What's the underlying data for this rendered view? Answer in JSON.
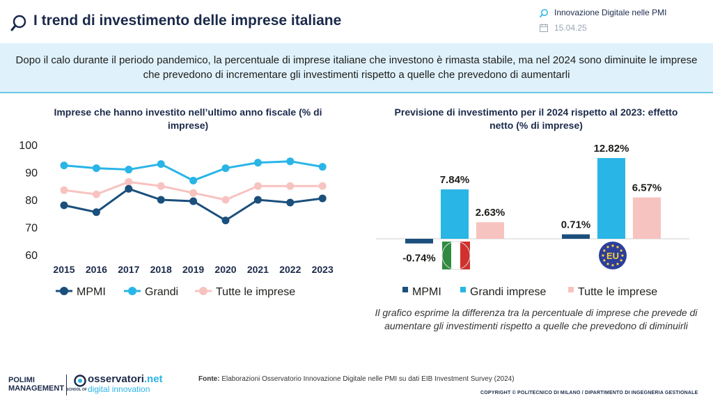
{
  "header": {
    "title": "I trend di investimento delle imprese italiane",
    "right_topic": "Innovazione Digitale nelle PMI",
    "right_date": "15.04.25"
  },
  "banner": {
    "text": "Dopo il calo durante il periodo pandemico, la percentuale di imprese italiane che investono è rimasta stabile, ma nel 2024 sono diminuite le imprese che prevedono di incrementare gli investimenti rispetto a quelle che prevedono di aumentarli"
  },
  "note": "Il grafico esprime la differenza tra la percentuale di imprese che prevede di aumentare gli investimenti rispetto a quelle che prevedono di diminuirli",
  "footer": {
    "source_label": "Fonte:",
    "source_text": "Elaborazioni Osservatorio Innovazione Digitale nelle PMI su dati EIB Investment Survey (2024)",
    "copyright": "COPYRIGHT © POLITECNICO DI MILANO / DIPARTIMENTO DI INGEGNERIA GESTIONALE"
  },
  "logos": {
    "polimi_line1": "POLIMI",
    "polimi_line2": "MANAGEMENT",
    "polimi_school": "SCHOOL OF",
    "oss_name_a": "osservatori",
    "oss_name_b": ".net",
    "oss_sub": "digital innovation"
  },
  "colors": {
    "mpmi": "#1b4f7c",
    "grandi": "#29b5e6",
    "tutte": "#f7c3c0"
  },
  "chart_data": [
    {
      "type": "line",
      "title": "Imprese che hanno investito nell’ultimo anno fiscale (% di imprese)",
      "x": [
        "2015",
        "2016",
        "2017",
        "2018",
        "2019",
        "2020",
        "2021",
        "2022",
        "2023"
      ],
      "ylim": [
        60,
        100
      ],
      "yticks": [
        "100",
        "90",
        "80",
        "70",
        "60"
      ],
      "series": [
        {
          "name": "MPMI",
          "values": [
            78,
            75.5,
            84,
            80,
            79.5,
            72.5,
            80,
            79,
            80.5
          ]
        },
        {
          "name": "Grandi",
          "values": [
            92.5,
            91.5,
            91,
            93,
            87,
            91.5,
            93.5,
            94,
            92
          ]
        },
        {
          "name": "Tutte le imprese",
          "values": [
            83.5,
            82,
            86.5,
            85,
            82.5,
            80,
            85,
            85,
            85
          ]
        }
      ]
    },
    {
      "type": "bar",
      "title": "Previsione di investimento per il 2024 rispetto al 2023: effetto netto (% di imprese)",
      "categories": [
        "Italia",
        "EU"
      ],
      "category_badges": [
        "IT",
        "EU"
      ],
      "series": [
        {
          "name": "MPMI",
          "values": [
            -0.74,
            0.71
          ],
          "labels": [
            "-0.74%",
            "0.71%"
          ]
        },
        {
          "name": "Grandi imprese",
          "values": [
            7.84,
            12.82
          ],
          "labels": [
            "7.84%",
            "12.82%"
          ]
        },
        {
          "name": "Tutte le imprese",
          "values": [
            2.63,
            6.57
          ],
          "labels": [
            "2.63%",
            "6.57%"
          ]
        }
      ]
    }
  ]
}
